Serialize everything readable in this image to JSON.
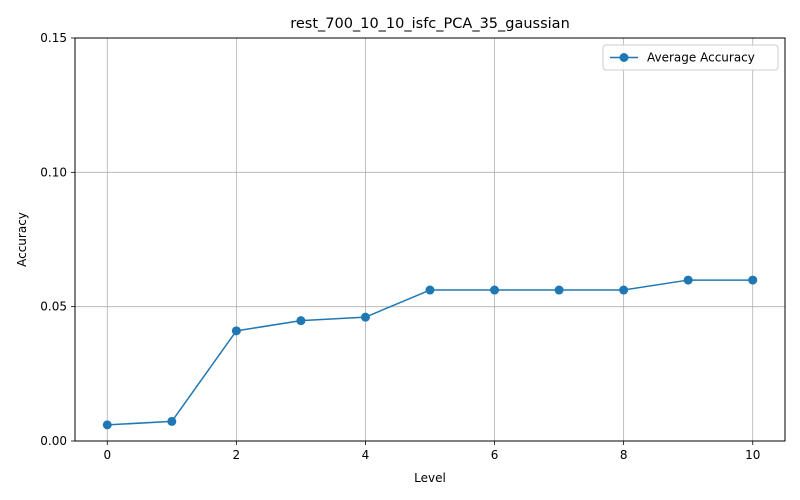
{
  "chart_data": {
    "type": "line",
    "title": "rest_700_10_10_isfc_PCA_35_gaussian",
    "xlabel": "Level",
    "ylabel": "Accuracy",
    "xlim": [
      -0.5,
      10.5
    ],
    "ylim": [
      0,
      0.15
    ],
    "xticks": [
      0,
      2,
      4,
      6,
      8,
      10
    ],
    "xtick_labels": [
      "0",
      "2",
      "4",
      "6",
      "8",
      "10"
    ],
    "yticks": [
      0,
      0.05,
      0.1,
      0.15
    ],
    "ytick_labels": [
      "0.00",
      "0.05",
      "0.10",
      "0.15"
    ],
    "grid": true,
    "legend_position": "top-right",
    "series": [
      {
        "name": "Average Accuracy",
        "color": "#1f77b4",
        "marker": "circle",
        "x": [
          0,
          1,
          2,
          3,
          4,
          5,
          6,
          7,
          8,
          9,
          10
        ],
        "y": [
          0.006,
          0.0073,
          0.041,
          0.0448,
          0.0461,
          0.0562,
          0.0562,
          0.0562,
          0.0562,
          0.0599,
          0.0599
        ]
      }
    ]
  }
}
